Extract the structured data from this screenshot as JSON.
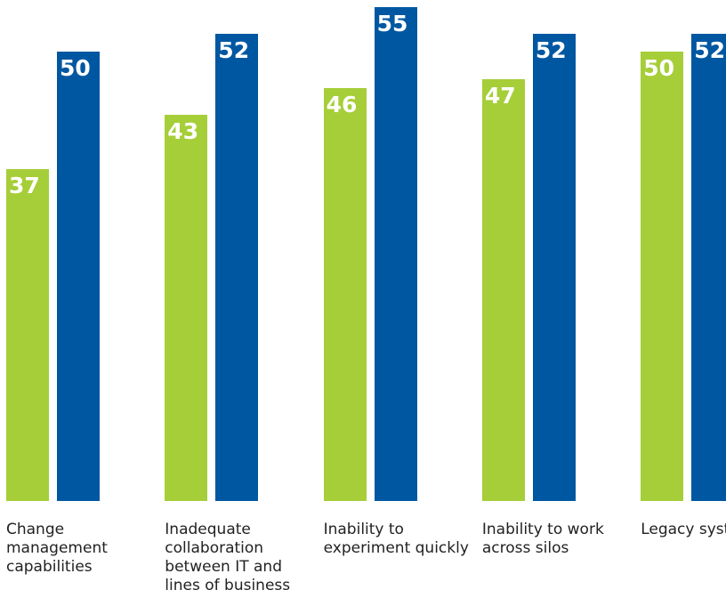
{
  "chart_data": {
    "type": "bar",
    "categories": [
      "Change management capabilities",
      "Inadequate collaboration between IT and lines of business",
      "Inability to experiment quickly",
      "Inability to work across silos",
      "Legacy systems"
    ],
    "series": [
      {
        "color": "#a6ce39",
        "values": [
          37,
          43,
          46,
          47,
          50
        ]
      },
      {
        "color": "#0057a1",
        "values": [
          50,
          52,
          55,
          52,
          52
        ]
      }
    ],
    "ylim": [
      0,
      55
    ]
  }
}
